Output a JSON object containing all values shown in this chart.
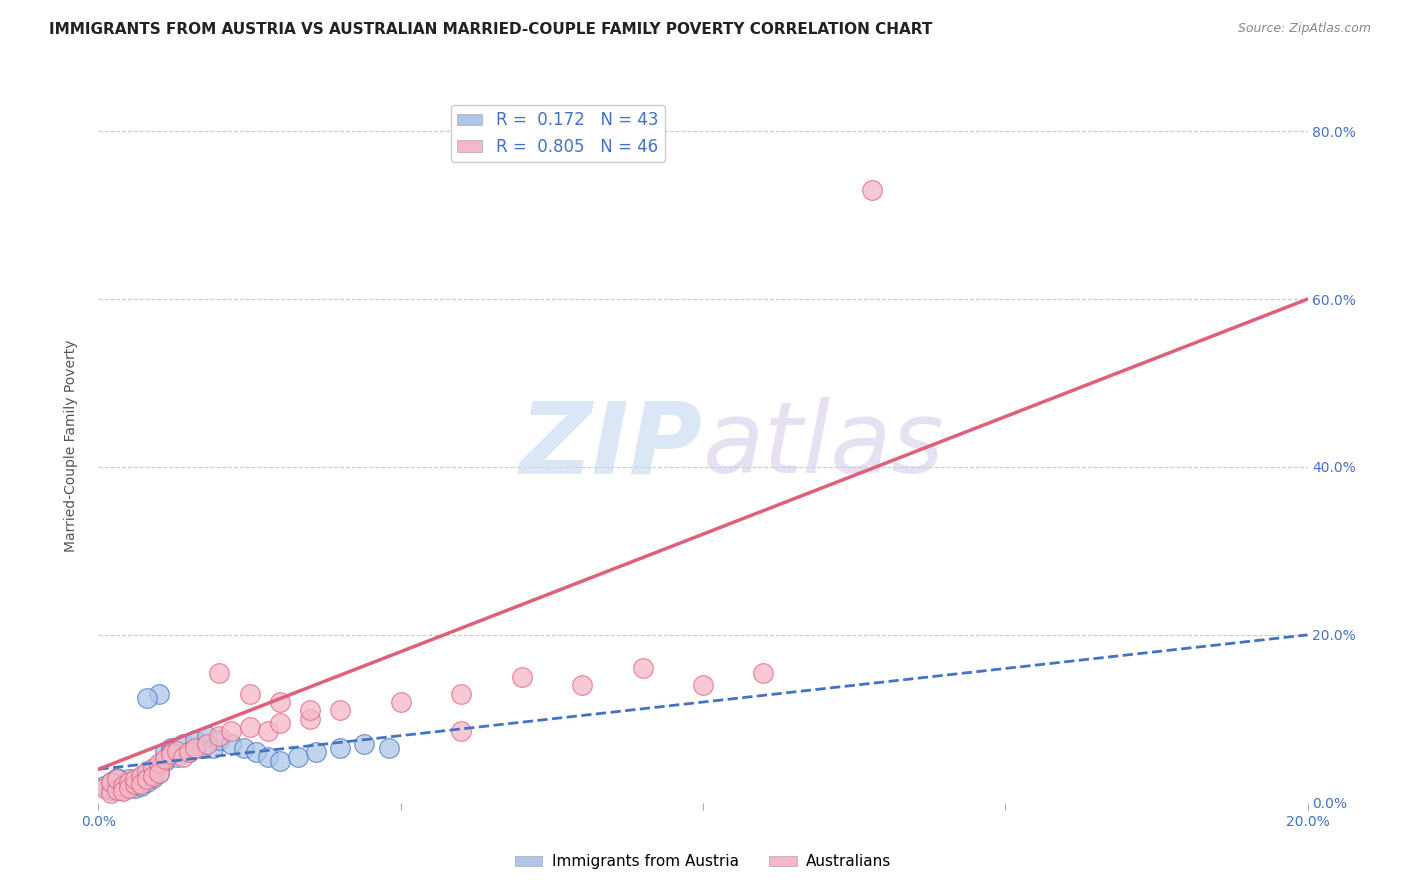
{
  "title": "IMMIGRANTS FROM AUSTRIA VS AUSTRALIAN MARRIED-COUPLE FAMILY POVERTY CORRELATION CHART",
  "source": "Source: ZipAtlas.com",
  "ylabel": "Married-Couple Family Poverty",
  "xlim": [
    0.0,
    0.2
  ],
  "ylim": [
    0.0,
    0.85
  ],
  "blue_R": 0.172,
  "blue_N": 43,
  "pink_R": 0.805,
  "pink_N": 46,
  "blue_color": "#aec6e8",
  "pink_color": "#f5b8c8",
  "blue_line_color": "#4472c4",
  "pink_line_color": "#e0607a",
  "blue_trend_x0": 0.0,
  "blue_trend_y0": 0.04,
  "blue_trend_x1": 0.2,
  "blue_trend_y1": 0.2,
  "pink_trend_x0": 0.0,
  "pink_trend_y0": 0.04,
  "pink_trend_x1": 0.2,
  "pink_trend_y1": 0.6,
  "watermark_zip": "ZIP",
  "watermark_atlas": "atlas",
  "blue_scatter_x": [
    0.001,
    0.002,
    0.002,
    0.003,
    0.003,
    0.004,
    0.004,
    0.005,
    0.005,
    0.006,
    0.006,
    0.007,
    0.007,
    0.008,
    0.008,
    0.009,
    0.009,
    0.01,
    0.01,
    0.011,
    0.011,
    0.012,
    0.013,
    0.014,
    0.015,
    0.016,
    0.017,
    0.018,
    0.019,
    0.02,
    0.022,
    0.024,
    0.026,
    0.028,
    0.03,
    0.033,
    0.036,
    0.04,
    0.044,
    0.048,
    0.01,
    0.008,
    0.012
  ],
  "blue_scatter_y": [
    0.02,
    0.015,
    0.025,
    0.018,
    0.03,
    0.022,
    0.015,
    0.028,
    0.02,
    0.018,
    0.025,
    0.03,
    0.02,
    0.035,
    0.025,
    0.04,
    0.03,
    0.045,
    0.035,
    0.05,
    0.06,
    0.065,
    0.055,
    0.07,
    0.06,
    0.075,
    0.065,
    0.08,
    0.065,
    0.075,
    0.07,
    0.065,
    0.06,
    0.055,
    0.05,
    0.055,
    0.06,
    0.065,
    0.07,
    0.065,
    0.13,
    0.125,
    0.06
  ],
  "pink_scatter_x": [
    0.001,
    0.002,
    0.002,
    0.003,
    0.003,
    0.004,
    0.004,
    0.005,
    0.005,
    0.006,
    0.006,
    0.007,
    0.007,
    0.008,
    0.008,
    0.009,
    0.009,
    0.01,
    0.01,
    0.011,
    0.012,
    0.013,
    0.014,
    0.015,
    0.016,
    0.018,
    0.02,
    0.022,
    0.025,
    0.028,
    0.03,
    0.035,
    0.04,
    0.05,
    0.06,
    0.07,
    0.08,
    0.09,
    0.1,
    0.11,
    0.02,
    0.025,
    0.03,
    0.035,
    0.128,
    0.06
  ],
  "pink_scatter_y": [
    0.018,
    0.012,
    0.025,
    0.015,
    0.028,
    0.02,
    0.014,
    0.025,
    0.018,
    0.022,
    0.028,
    0.032,
    0.022,
    0.038,
    0.028,
    0.042,
    0.032,
    0.048,
    0.035,
    0.052,
    0.058,
    0.062,
    0.055,
    0.06,
    0.065,
    0.07,
    0.08,
    0.085,
    0.09,
    0.085,
    0.095,
    0.1,
    0.11,
    0.12,
    0.13,
    0.15,
    0.14,
    0.16,
    0.14,
    0.155,
    0.155,
    0.13,
    0.12,
    0.11,
    0.73,
    0.085
  ]
}
